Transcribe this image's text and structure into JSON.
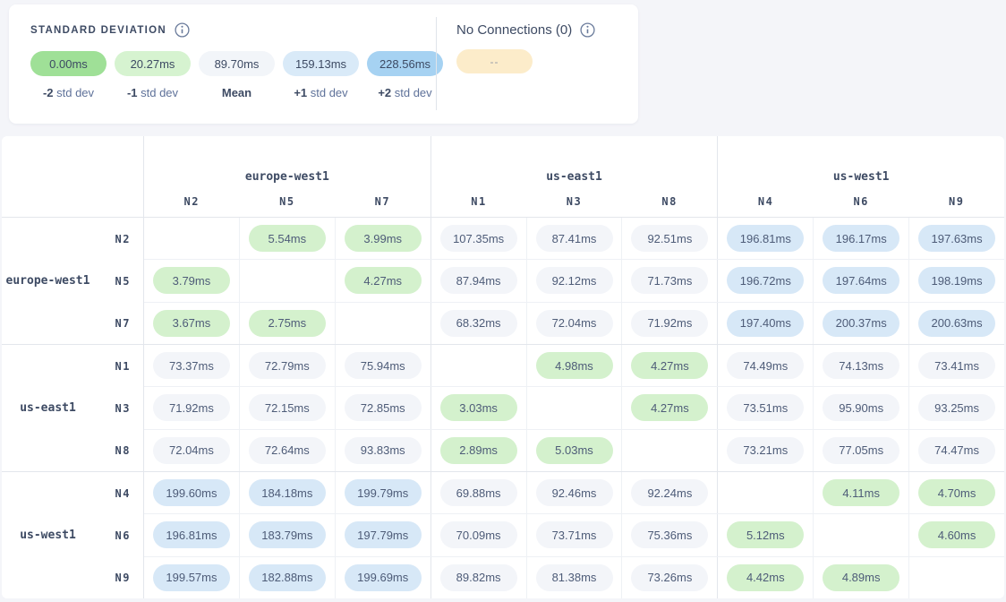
{
  "legend": {
    "title": "STANDARD DEVIATION",
    "stops": [
      {
        "value": "0.00ms",
        "label_strong": "-2",
        "label_rest": " std dev",
        "color": "#9fe097"
      },
      {
        "value": "20.27ms",
        "label_strong": "-1",
        "label_rest": " std dev",
        "color": "#d6f3d0"
      },
      {
        "value": "89.70ms",
        "label_strong": "Mean",
        "label_rest": "",
        "color": "#f2f5f9"
      },
      {
        "value": "159.13ms",
        "label_strong": "+1",
        "label_rest": " std dev",
        "color": "#d9eaf8"
      },
      {
        "value": "228.56ms",
        "label_strong": "+2",
        "label_rest": " std dev",
        "color": "#a6d2f2"
      }
    ],
    "no_connections": {
      "label": "No Connections (0)",
      "pill_text": "--",
      "pill_color": "#fcecca"
    }
  },
  "matrix": {
    "col_groups": [
      {
        "region": "europe-west1",
        "nodes": [
          "N2",
          "N5",
          "N7"
        ]
      },
      {
        "region": "us-east1",
        "nodes": [
          "N1",
          "N3",
          "N8"
        ]
      },
      {
        "region": "us-west1",
        "nodes": [
          "N4",
          "N6",
          "N9"
        ]
      }
    ],
    "row_groups": [
      {
        "region": "europe-west1",
        "rows": [
          {
            "node": "N2",
            "cells": [
              "",
              "5.54ms",
              "3.99ms",
              "107.35ms",
              "87.41ms",
              "92.51ms",
              "196.81ms",
              "196.17ms",
              "197.63ms"
            ]
          },
          {
            "node": "N5",
            "cells": [
              "3.79ms",
              "",
              "4.27ms",
              "87.94ms",
              "92.12ms",
              "71.73ms",
              "196.72ms",
              "197.64ms",
              "198.19ms"
            ]
          },
          {
            "node": "N7",
            "cells": [
              "3.67ms",
              "2.75ms",
              "",
              "68.32ms",
              "72.04ms",
              "71.92ms",
              "197.40ms",
              "200.37ms",
              "200.63ms"
            ]
          }
        ]
      },
      {
        "region": "us-east1",
        "rows": [
          {
            "node": "N1",
            "cells": [
              "73.37ms",
              "72.79ms",
              "75.94ms",
              "",
              "4.98ms",
              "4.27ms",
              "74.49ms",
              "74.13ms",
              "73.41ms"
            ]
          },
          {
            "node": "N3",
            "cells": [
              "71.92ms",
              "72.15ms",
              "72.85ms",
              "3.03ms",
              "",
              "4.27ms",
              "73.51ms",
              "95.90ms",
              "93.25ms"
            ]
          },
          {
            "node": "N8",
            "cells": [
              "72.04ms",
              "72.64ms",
              "93.83ms",
              "2.89ms",
              "5.03ms",
              "",
              "73.21ms",
              "77.05ms",
              "74.47ms"
            ]
          }
        ]
      },
      {
        "region": "us-west1",
        "rows": [
          {
            "node": "N4",
            "cells": [
              "199.60ms",
              "184.18ms",
              "199.79ms",
              "69.88ms",
              "92.46ms",
              "92.24ms",
              "",
              "4.11ms",
              "4.70ms"
            ]
          },
          {
            "node": "N6",
            "cells": [
              "196.81ms",
              "183.79ms",
              "197.79ms",
              "70.09ms",
              "73.71ms",
              "75.36ms",
              "5.12ms",
              "",
              "4.60ms"
            ]
          },
          {
            "node": "N9",
            "cells": [
              "199.57ms",
              "182.88ms",
              "199.69ms",
              "89.82ms",
              "81.38ms",
              "73.26ms",
              "4.42ms",
              "4.89ms",
              ""
            ]
          }
        ]
      }
    ],
    "cell_colors": {
      "low": "#d4f1cd",
      "mid": "#f3f5f9",
      "high": "#d7e8f7"
    },
    "thresholds": {
      "low_max_ms": 20,
      "high_min_ms": 160
    }
  }
}
